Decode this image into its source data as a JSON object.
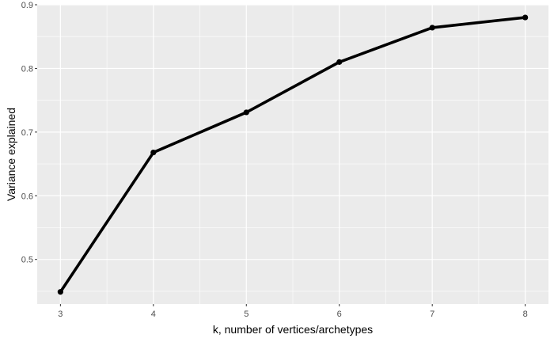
{
  "chart_data": {
    "type": "line",
    "xlabel": "k, number of vertices/archetypes",
    "ylabel": "Variance explained",
    "x": [
      3,
      4,
      5,
      6,
      7,
      8
    ],
    "y": [
      0.449,
      0.668,
      0.731,
      0.81,
      0.864,
      0.88
    ],
    "xlim": [
      2.75,
      8.25
    ],
    "ylim": [
      0.43,
      0.9
    ],
    "x_ticks": [
      3,
      4,
      5,
      6,
      7,
      8
    ],
    "x_tick_labels": [
      "3",
      "4",
      "5",
      "6",
      "7",
      "8"
    ],
    "y_ticks": [
      0.5,
      0.6,
      0.7,
      0.8,
      0.9
    ],
    "y_tick_labels": [
      "0.5",
      "0.6",
      "0.7",
      "0.8",
      "0.9"
    ],
    "grid": true,
    "panel_background": "#ebebeb",
    "grid_color": "#ffffff",
    "line_color": "#000000",
    "point_color": "#000000"
  }
}
